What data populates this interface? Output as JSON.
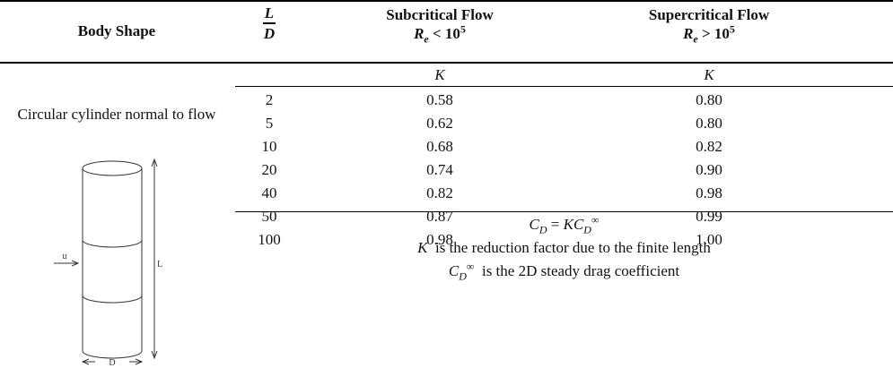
{
  "header": {
    "body_shape": "Body Shape",
    "ratio": {
      "numerator": "L",
      "denominator": "D"
    },
    "subcritical": {
      "title": "Subcritical Flow",
      "symbol": "R",
      "subscript": "e",
      "operator": "<",
      "base": "10",
      "exponent": "5"
    },
    "supercritical": {
      "title": "Supercritical Flow",
      "symbol": "R",
      "subscript": "e",
      "operator": ">",
      "base": "10",
      "exponent": "5"
    }
  },
  "subheader": [
    "K",
    "K"
  ],
  "body_shape": {
    "description": "Circular cylinder normal to flow",
    "diagram": {
      "flow": "u",
      "length": "L",
      "diameter": "D"
    }
  },
  "table": {
    "rows": [
      [
        "2",
        "0.58",
        "0.80"
      ],
      [
        "5",
        "0.62",
        "0.80"
      ],
      [
        "10",
        "0.68",
        "0.82"
      ],
      [
        "20",
        "0.74",
        "0.90"
      ],
      [
        "40",
        "0.82",
        "0.98"
      ],
      [
        "50",
        "0.87",
        "0.99"
      ],
      [
        "100",
        "0.98",
        "1.00"
      ]
    ]
  },
  "notes": [
    {
      "lhs_symbol": "C",
      "lhs_subscript": "D",
      "operator": "=",
      "factor": "K",
      "rhs_symbol": "C",
      "rhs_subscript": "D",
      "rhs_superscript": "∞"
    },
    {
      "symbol": "K",
      "text": "is the reduction factor due to the finite length"
    },
    {
      "symbol": "C",
      "subscript": "D",
      "superscript": "∞",
      "text": "is the 2D steady drag coefficient"
    }
  ]
}
